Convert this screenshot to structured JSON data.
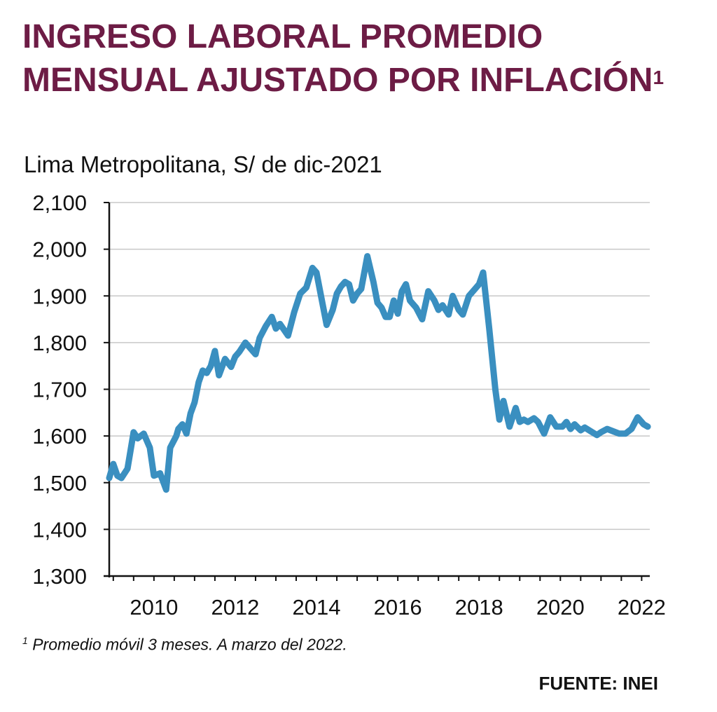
{
  "title": "INGRESO LABORAL PROMEDIO MENSUAL AJUSTADO POR INFLACIÓN",
  "title_superscript": "1",
  "subtitle": "Lima Metropolitana, S/ de dic-2021",
  "footnote_marker": "1",
  "footnote": "Promedio móvil 3 meses. A marzo del 2022.",
  "source": "FUENTE: INEI",
  "chart_data": {
    "type": "line",
    "title": "INGRESO LABORAL PROMEDIO MENSUAL AJUSTADO POR INFLACIÓN",
    "subtitle": "Lima Metropolitana, S/ de dic-2021",
    "ylim": [
      1300,
      2100
    ],
    "xlim": [
      2008.9,
      2022.2
    ],
    "y_ticks": [
      {
        "value": 2100,
        "label": "2,100"
      },
      {
        "value": 2000,
        "label": "2,000"
      },
      {
        "value": 1900,
        "label": "1,900"
      },
      {
        "value": 1800,
        "label": "1,800"
      },
      {
        "value": 1700,
        "label": "1,700"
      },
      {
        "value": 1600,
        "label": "1,600"
      },
      {
        "value": 1500,
        "label": "1,500"
      },
      {
        "value": 1400,
        "label": "1,400"
      },
      {
        "value": 1300,
        "label": "1,300"
      }
    ],
    "x_ticks": [
      {
        "value": 2010,
        "label": "2010"
      },
      {
        "value": 2012,
        "label": "2012"
      },
      {
        "value": 2014,
        "label": "2014"
      },
      {
        "value": 2016,
        "label": "2016"
      },
      {
        "value": 2018,
        "label": "2018"
      },
      {
        "value": 2020,
        "label": "2020"
      },
      {
        "value": 2022,
        "label": "2022"
      }
    ],
    "grid": "horizontal",
    "line_color": "#3a8fc0",
    "series": [
      {
        "name": "",
        "x": [
          2008.9,
          2009.0,
          2009.1,
          2009.2,
          2009.35,
          2009.5,
          2009.6,
          2009.75,
          2009.9,
          2010.0,
          2010.15,
          2010.3,
          2010.4,
          2010.55,
          2010.6,
          2010.7,
          2010.8,
          2010.9,
          2011.0,
          2011.1,
          2011.2,
          2011.3,
          2011.4,
          2011.5,
          2011.6,
          2011.75,
          2011.9,
          2012.0,
          2012.1,
          2012.25,
          2012.4,
          2012.5,
          2012.6,
          2012.75,
          2012.9,
          2013.0,
          2013.1,
          2013.3,
          2013.45,
          2013.6,
          2013.75,
          2013.9,
          2014.0,
          2014.1,
          2014.25,
          2014.4,
          2014.5,
          2014.6,
          2014.7,
          2014.8,
          2014.9,
          2015.0,
          2015.1,
          2015.25,
          2015.4,
          2015.5,
          2015.6,
          2015.7,
          2015.8,
          2015.9,
          2016.0,
          2016.1,
          2016.2,
          2016.3,
          2016.45,
          2016.6,
          2016.75,
          2016.9,
          2017.0,
          2017.1,
          2017.25,
          2017.35,
          2017.5,
          2017.6,
          2017.75,
          2017.9,
          2018.0,
          2018.1,
          2018.25,
          2018.4,
          2018.5,
          2018.6,
          2018.75,
          2018.9,
          2019.0,
          2019.1,
          2019.2,
          2019.35,
          2019.45,
          2019.6,
          2019.75,
          2019.9,
          2020.05,
          2020.15,
          2020.25,
          2020.35,
          2020.5,
          2020.6,
          2020.75,
          2020.9,
          2021.0,
          2021.15,
          2021.3,
          2021.45,
          2021.6,
          2021.75,
          2021.9,
          2022.05,
          2022.15
        ],
        "values": [
          1510,
          1540,
          1515,
          1510,
          1530,
          1608,
          1595,
          1605,
          1575,
          1515,
          1520,
          1485,
          1575,
          1600,
          1615,
          1625,
          1605,
          1648,
          1672,
          1715,
          1740,
          1735,
          1750,
          1782,
          1730,
          1765,
          1748,
          1770,
          1780,
          1800,
          1785,
          1775,
          1810,
          1835,
          1855,
          1830,
          1840,
          1815,
          1865,
          1905,
          1918,
          1960,
          1950,
          1905,
          1838,
          1870,
          1905,
          1920,
          1930,
          1925,
          1890,
          1905,
          1915,
          1985,
          1930,
          1885,
          1875,
          1855,
          1855,
          1890,
          1862,
          1910,
          1925,
          1890,
          1875,
          1850,
          1910,
          1890,
          1870,
          1880,
          1860,
          1900,
          1870,
          1860,
          1900,
          1915,
          1925,
          1950,
          1830,
          1700,
          1635,
          1675,
          1620,
          1660,
          1630,
          1635,
          1630,
          1638,
          1630,
          1605,
          1640,
          1620,
          1620,
          1630,
          1615,
          1625,
          1612,
          1618,
          1610,
          1602,
          1608,
          1615,
          1610,
          1605,
          1605,
          1615,
          1640,
          1625,
          1620
        ]
      }
    ]
  }
}
